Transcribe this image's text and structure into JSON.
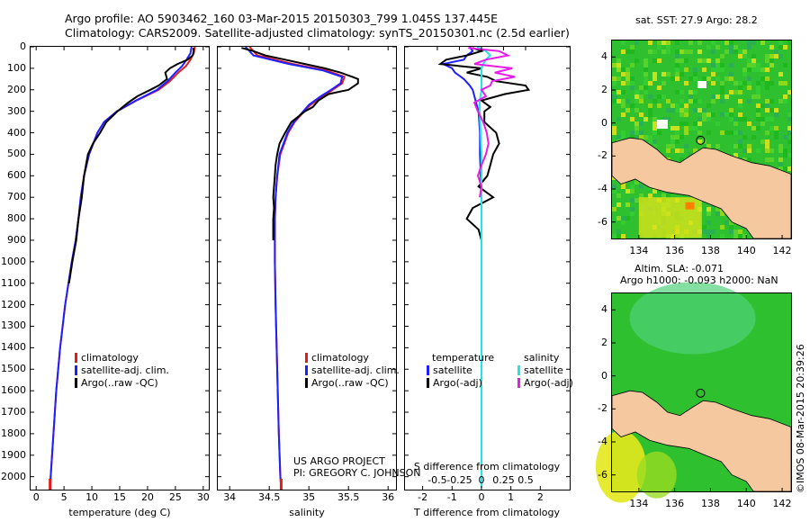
{
  "header": {
    "line1": "Argo profile: AO 5903462_160 03-Mar-2015 20150303_799 1.045S 137.445E",
    "line2": "Climatology: CARS2009. Satellite-adjusted climatology: synTS_20150301.nc (2.5d earlier)"
  },
  "maps": {
    "sst_title": "sat. SST: 27.9 Argo: 28.2",
    "sla_title1": "Altim. SLA: -0.071",
    "sla_title2": "Argo h1000: -0.093 h2000: NaN",
    "watermark": "©IMOS 08-Mar-2015 20:39:26",
    "xticks": [
      134,
      136,
      138,
      140,
      142
    ],
    "yticks": [
      4,
      2,
      0,
      -2,
      -4,
      -6
    ],
    "xlim": [
      132.5,
      142.5
    ],
    "ylim": [
      -7,
      5
    ],
    "float_position": {
      "lon": 137.445,
      "lat": -1.045
    }
  },
  "credits": {
    "project": "US ARGO PROJECT",
    "pi": "PI: GREGORY C. JOHNSON"
  },
  "colors": {
    "climatology": "#e41a1c",
    "satellite": "#1f1fff",
    "argo": "#000000",
    "sat_salinity": "#22e6e6",
    "argo_salinity": "#e81ce8",
    "land": "#f5c8a0",
    "ocean": "#2fc02f"
  },
  "chart_data": [
    {
      "type": "line",
      "title": "",
      "xlabel": "temperature (deg C)",
      "ylabel": "",
      "xlim": [
        -1,
        31
      ],
      "ylim": [
        2060,
        0
      ],
      "xticks": [
        0,
        5,
        10,
        15,
        20,
        25,
        30
      ],
      "yticks": [
        0,
        100,
        200,
        300,
        400,
        500,
        600,
        700,
        800,
        900,
        1000,
        1100,
        1200,
        1300,
        1400,
        1500,
        1600,
        1700,
        1800,
        1900,
        2000
      ],
      "legend": [
        "climatology",
        "satellite-adj. clim.",
        "Argo(..raw -QC)"
      ],
      "series": [
        {
          "name": "climatology",
          "depth": [
            0,
            30,
            60,
            90,
            120,
            160,
            200,
            250,
            300,
            350,
            400,
            500,
            600,
            700,
            800,
            900,
            1000,
            1200,
            1400,
            1600,
            1800,
            2000,
            2050
          ],
          "values": [
            28.5,
            28.3,
            27.7,
            26.9,
            25.5,
            24.0,
            22.0,
            18.0,
            14.5,
            12.2,
            11.0,
            9.5,
            8.6,
            8.0,
            7.6,
            7.1,
            6.4,
            5.2,
            4.3,
            3.6,
            3.1,
            2.6,
            2.5
          ]
        },
        {
          "name": "satellite-adj. clim.",
          "depth": [
            0,
            30,
            60,
            90,
            120,
            160,
            200,
            250,
            300,
            350,
            400,
            500,
            600,
            700,
            800,
            900,
            1000,
            1200,
            1400,
            1600,
            1800,
            2000,
            2050
          ],
          "values": [
            27.9,
            27.7,
            27.0,
            26.2,
            25.0,
            23.6,
            21.7,
            17.9,
            14.5,
            12.2,
            11.0,
            9.5,
            8.6,
            8.0,
            7.6,
            7.1,
            6.4,
            5.2,
            4.3,
            3.6,
            3.1,
            2.6,
            2.5
          ]
        },
        {
          "name": "Argo(..raw -QC)",
          "depth": [
            5,
            20,
            40,
            60,
            80,
            100,
            120,
            150,
            180,
            200,
            230,
            260,
            300,
            350,
            400,
            450,
            500,
            600,
            700,
            800,
            900,
            1000,
            1100
          ],
          "values": [
            28.2,
            28.3,
            28.1,
            27.2,
            25.4,
            24.0,
            23.2,
            23.5,
            22.0,
            20.5,
            18.2,
            16.5,
            14.6,
            12.6,
            11.5,
            10.2,
            9.3,
            8.6,
            8.2,
            7.6,
            7.2,
            6.5,
            5.9
          ]
        }
      ]
    },
    {
      "type": "line",
      "title": "",
      "xlabel": "salinity",
      "ylabel": "",
      "xlim": [
        33.85,
        36.1
      ],
      "ylim": [
        2060,
        0
      ],
      "xticks": [
        34,
        34.5,
        35,
        35.5,
        36
      ],
      "legend": [
        "climatology",
        "satellite-adj. clim.",
        "Argo(..raw -QC)"
      ],
      "series": [
        {
          "name": "climatology",
          "depth": [
            0,
            40,
            80,
            110,
            140,
            170,
            200,
            230,
            270,
            300,
            350,
            400,
            500,
            600,
            700,
            800,
            1000,
            1200,
            1500,
            1800,
            2000,
            2050
          ],
          "values": [
            34.25,
            34.35,
            34.8,
            35.22,
            35.45,
            35.42,
            35.3,
            35.18,
            35.02,
            34.94,
            34.82,
            34.74,
            34.64,
            34.6,
            34.58,
            34.57,
            34.57,
            34.58,
            34.6,
            34.62,
            34.64,
            34.65
          ]
        },
        {
          "name": "satellite-adj. clim.",
          "depth": [
            0,
            40,
            80,
            110,
            140,
            170,
            200,
            230,
            270,
            300,
            350,
            400,
            500,
            600,
            700,
            800,
            1000,
            1200,
            1500,
            1800,
            2000,
            2050
          ],
          "values": [
            34.2,
            34.3,
            34.75,
            35.18,
            35.42,
            35.4,
            35.28,
            35.15,
            35.0,
            34.93,
            34.81,
            34.73,
            34.63,
            34.6,
            34.58,
            34.57,
            34.57,
            34.58,
            34.6,
            34.62,
            34.64,
            34.65
          ]
        },
        {
          "name": "Argo(..raw -QC)",
          "depth": [
            5,
            20,
            40,
            60,
            80,
            100,
            120,
            140,
            150,
            170,
            200,
            220,
            250,
            280,
            300,
            350,
            400,
            450,
            500,
            550,
            600,
            650,
            700,
            750,
            800,
            850,
            900
          ],
          "values": [
            34.15,
            34.3,
            34.45,
            34.7,
            34.95,
            35.2,
            35.4,
            35.55,
            35.62,
            35.62,
            35.5,
            35.25,
            35.12,
            35.05,
            34.95,
            34.78,
            34.7,
            34.63,
            34.6,
            34.58,
            34.57,
            34.56,
            34.55,
            34.56,
            34.55,
            34.55,
            34.55
          ]
        }
      ]
    },
    {
      "type": "line",
      "title": "",
      "xlabel": "T difference from climatology",
      "xlabel2": "S difference from climatology",
      "ylabel": "",
      "xlim": [
        -2.6,
        3.0
      ],
      "ylim": [
        2060,
        0
      ],
      "xticks": [
        -2,
        -1,
        0,
        1,
        2
      ],
      "sticks": [
        -0.5,
        -0.25,
        0,
        0.25,
        0.5
      ],
      "sticklabels": [
        "-0.5",
        "-0.25",
        "0",
        "0.25",
        "0.5"
      ],
      "legend_titles": [
        "temperature",
        "salinity"
      ],
      "legend": [
        "satellite",
        "Argo(-adj)",
        "satellite",
        "Argo(-adj)"
      ],
      "series": [
        {
          "name": "T satellite",
          "depth": [
            0,
            20,
            40,
            60,
            80,
            100,
            120,
            150,
            180,
            200,
            250,
            300,
            400,
            500,
            700,
            1000,
            1500,
            2000,
            2050
          ],
          "values": [
            -0.4,
            -0.3,
            -0.5,
            -0.6,
            -1.3,
            -1.0,
            -0.9,
            -0.6,
            -0.4,
            -0.3,
            -0.2,
            -0.1,
            -0.05,
            -0.05,
            0,
            0,
            0,
            0,
            0
          ]
        },
        {
          "name": "T Argo(-adj)",
          "depth": [
            5,
            20,
            40,
            60,
            80,
            100,
            120,
            140,
            160,
            180,
            200,
            220,
            250,
            280,
            300,
            350,
            400,
            450,
            500,
            550,
            600,
            650,
            700,
            750,
            800,
            850,
            900,
            1000,
            1100,
            1200,
            1300,
            1400,
            1500,
            1600,
            1700,
            1800,
            1900,
            2000,
            2050
          ],
          "values": [
            -0.3,
            0.0,
            -0.5,
            -1.2,
            -1.4,
            0.0,
            -0.5,
            0.2,
            0.5,
            1.5,
            1.6,
            0.8,
            0.0,
            0.3,
            0.1,
            0.1,
            0.5,
            0.6,
            0.4,
            0.3,
            0.2,
            -0.1,
            0.4,
            -0.3,
            -0.5,
            -0.1,
            0.0,
            0.0,
            0.0,
            0.0,
            0.0,
            0.0,
            0.0,
            0.0,
            0.0,
            0.0,
            0.0,
            0.0,
            0.0
          ]
        },
        {
          "name": "S satellite",
          "depth": [
            0,
            20,
            40,
            60,
            80,
            100,
            150,
            200,
            250,
            300,
            400,
            500,
            700,
            1000,
            1500,
            2000,
            2050
          ],
          "values": [
            -0.05,
            0.05,
            0.1,
            0.05,
            0.02,
            0.0,
            0.0,
            0.0,
            -0.02,
            -0.02,
            -0.01,
            0,
            0,
            0,
            0,
            0,
            0
          ]
        },
        {
          "name": "S Argo(-adj)",
          "depth": [
            5,
            20,
            40,
            60,
            80,
            100,
            120,
            140,
            160,
            180,
            200,
            230,
            260,
            300,
            350,
            400,
            450,
            500,
            550,
            600,
            650,
            700
          ],
          "values": [
            -0.15,
            0.2,
            0.3,
            0.05,
            -0.08,
            0.35,
            0.15,
            0.38,
            0.12,
            0.1,
            0.0,
            0.05,
            -0.08,
            -0.04,
            0.02,
            0.06,
            0.08,
            0.05,
            0.0,
            -0.04,
            0.0,
            -0.02
          ]
        }
      ]
    }
  ]
}
